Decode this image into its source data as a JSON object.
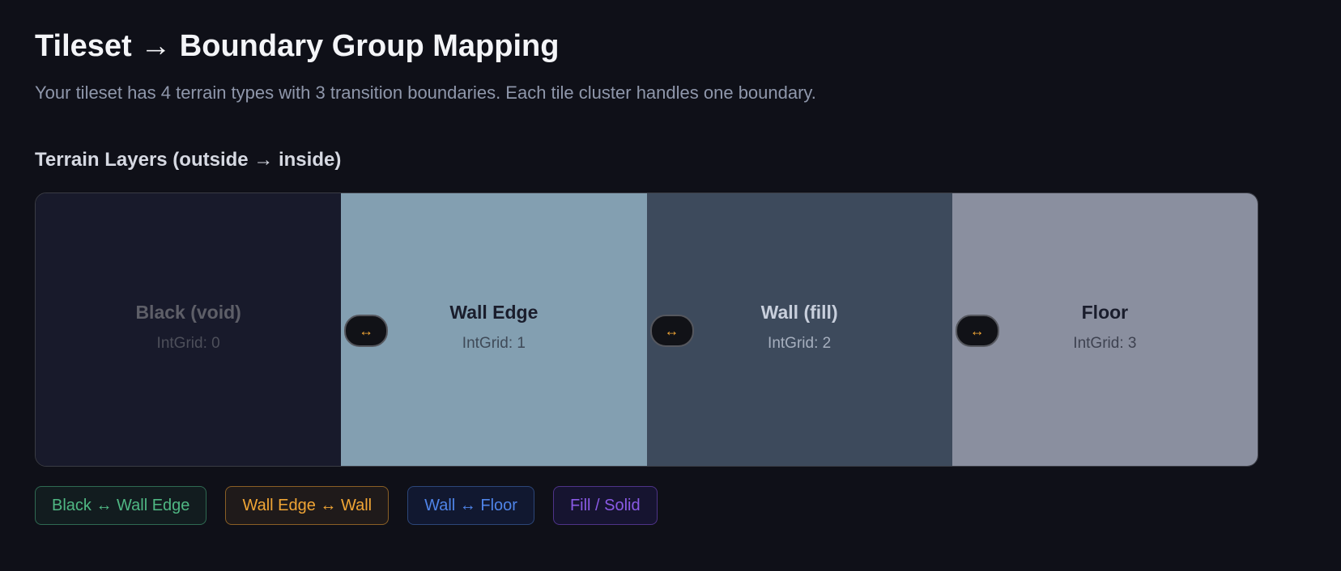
{
  "title": "Tileset → Boundary Group Mapping",
  "subtitle": "Your tileset has 4 terrain types with 3 transition boundaries. Each tile cluster handles one boundary.",
  "section_title": "Terrain Layers (outside → inside)",
  "swap_icon": "↔",
  "layers": [
    {
      "name": "Black (void)",
      "intgrid": "IntGrid: 0",
      "color": "#181a2b"
    },
    {
      "name": "Wall Edge",
      "intgrid": "IntGrid: 1",
      "color": "#839fb1"
    },
    {
      "name": "Wall (fill)",
      "intgrid": "IntGrid: 2",
      "color": "#3d4a5c"
    },
    {
      "name": "Floor",
      "intgrid": "IntGrid: 3",
      "color": "#8a8f9f"
    }
  ],
  "badges": [
    {
      "label": "Black ↔ Wall Edge",
      "color": "#4fb783"
    },
    {
      "label": "Wall Edge ↔ Wall",
      "color": "#f0a535"
    },
    {
      "label": "Wall ↔ Floor",
      "color": "#4f84e8"
    },
    {
      "label": "Fill / Solid",
      "color": "#8a5ae6"
    }
  ]
}
